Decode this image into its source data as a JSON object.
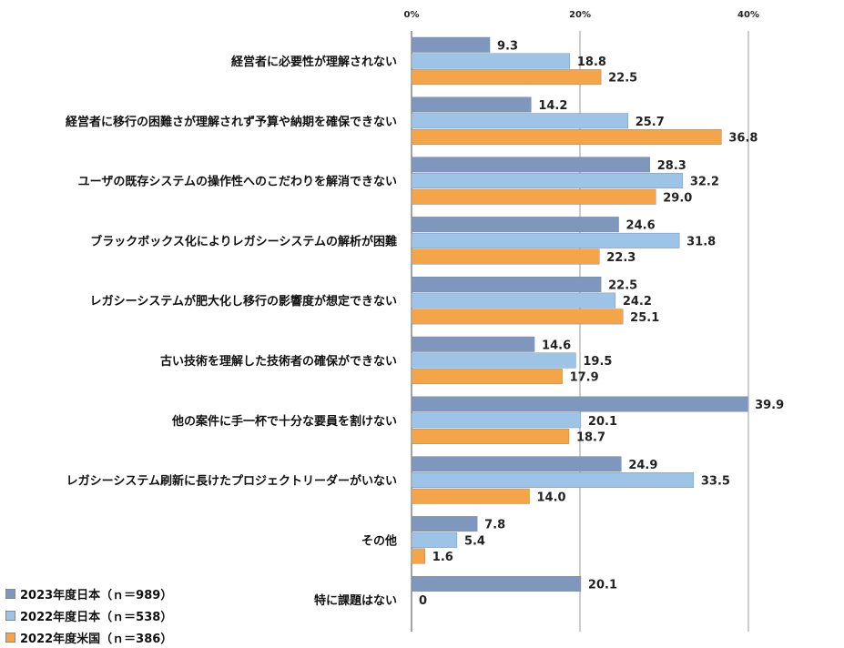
{
  "chart_data": {
    "type": "bar",
    "orientation": "horizontal",
    "categories": [
      "経営者に必要性が理解されない",
      "経営者に移行の困難さが理解されず予算や納期を確保できない",
      "ユーザの既存システムの操作性へのこだわりを解消できない",
      "ブラックボックス化によりレガシーシステムの解析が困難",
      "レガシーシステムが肥大化し移行の影響度が想定できない",
      "古い技術を理解した技術者の確保ができない",
      "他の案件に手一杯で十分な要員を割けない",
      "レガシーシステム刷新に長けたプロジェクトリーダーがいない",
      "その他",
      "特に課題はない"
    ],
    "series": [
      {
        "name": "2023年度日本（ｎ＝989）",
        "color": "#8097BD",
        "values": [
          9.3,
          14.2,
          28.3,
          24.6,
          22.5,
          14.6,
          39.9,
          24.9,
          7.8,
          20.1
        ],
        "labels": [
          "9.3",
          "14.2",
          "28.3",
          "24.6",
          "22.5",
          "14.6",
          "39.9",
          "24.9",
          "7.8",
          "20.1"
        ]
      },
      {
        "name": "2022年度日本（ｎ＝538）",
        "color": "#9DC3E6",
        "values": [
          18.8,
          25.7,
          32.2,
          31.8,
          24.2,
          19.5,
          20.1,
          33.5,
          5.4,
          0
        ],
        "labels": [
          "18.8",
          "25.7",
          "32.2",
          "31.8",
          "24.2",
          "19.5",
          "20.1",
          "33.5",
          "5.4",
          "0"
        ]
      },
      {
        "name": "2022年度米国（ｎ＝386）",
        "color": "#F4A54A",
        "values": [
          22.5,
          36.8,
          29.0,
          22.3,
          25.1,
          17.9,
          18.7,
          14.0,
          1.6,
          null
        ],
        "labels": [
          "22.5",
          "36.8",
          "29.0",
          "22.3",
          "25.1",
          "17.9",
          "18.7",
          "14.0",
          "1.6",
          ""
        ]
      }
    ],
    "xticks": [
      0,
      20,
      40
    ],
    "xtick_labels": [
      "0%",
      "20%",
      "40%"
    ],
    "xlim": [
      0,
      50
    ],
    "grid": true,
    "legend_position": "bottom-left",
    "title": "",
    "xlabel": "",
    "ylabel": ""
  }
}
